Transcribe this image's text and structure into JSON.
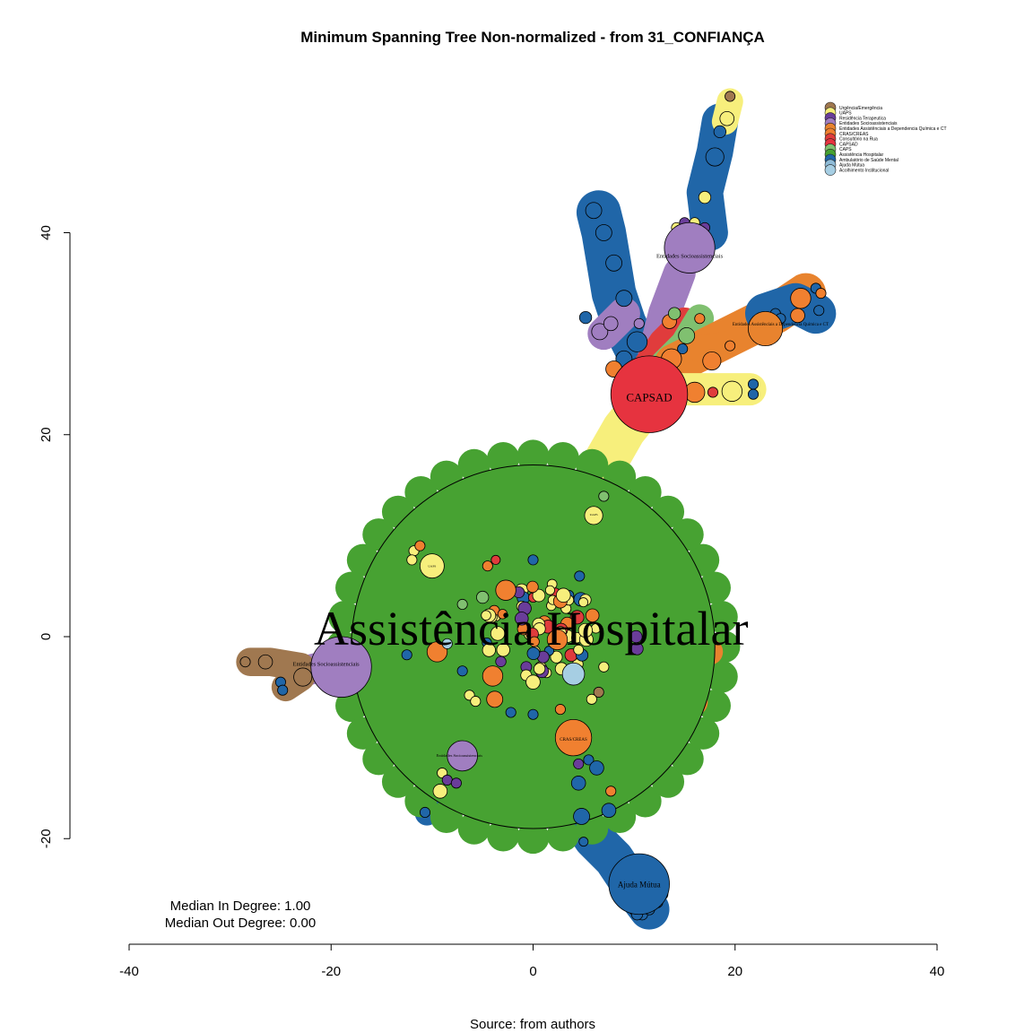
{
  "chart_data": {
    "type": "network",
    "title": "Minimum Spanning Tree Non-normalized - from 31_CONFIANÇA",
    "caption": "Source: from authors",
    "stats": [
      "Median In Degree: 1.00",
      "Median Out Degree: 0.00"
    ],
    "xlim": [
      -40,
      40
    ],
    "ylim": [
      -30,
      50
    ],
    "x_ticks": [
      -40,
      -20,
      0,
      20,
      40
    ],
    "y_ticks": [
      -20,
      0,
      20,
      40
    ],
    "grid": false,
    "legend_placement": "top-right",
    "legend": [
      {
        "label": "Urgência/Emergência",
        "color": "#a07850"
      },
      {
        "label": "UAPS",
        "color": "#f7ef7c"
      },
      {
        "label": "Residência Terapeutica",
        "color": "#6a3d9a"
      },
      {
        "label": "Entidades Socioassistenciais",
        "color": "#a07ec0"
      },
      {
        "label": "Entidades Assistênciais a Dependencia Química e CT",
        "color": "#e8832e"
      },
      {
        "label": "CRAS/CREAS",
        "color": "#f08030"
      },
      {
        "label": "Consultório na Rua",
        "color": "#e03c3c"
      },
      {
        "label": "CAPSAD",
        "color": "#e6333f"
      },
      {
        "label": "CAPS",
        "color": "#80c070"
      },
      {
        "label": "Assistência Hospitalar",
        "color": "#47a232"
      },
      {
        "label": "Ambulatório de Saúde Mental",
        "color": "#2066a8"
      },
      {
        "label": "Ajuda Mútua",
        "color": "#8fbcd8"
      },
      {
        "label": "Acolhimento Institucional",
        "color": "#a6cee3"
      }
    ],
    "labels": {
      "hospital": "Assistência Hospitalar",
      "capsad": "CAPSAD",
      "ajuda": "Ajuda Mútua",
      "entidades": "Entidades Socioassistenciais",
      "dependencia": "Entidades Assistênciais a Dependencia Química e CT",
      "uaps": "UAPS",
      "cras": "CRAS/CREAS"
    },
    "hubs": [
      {
        "name": "Assistência Hospitalar",
        "x": 0,
        "y": -1,
        "r": 18,
        "color": "#47a232"
      },
      {
        "name": "CAPSAD",
        "x": 11.5,
        "y": 24,
        "r": 3.8,
        "color": "#e6333f"
      },
      {
        "name": "Ajuda Mútua",
        "x": 10.5,
        "y": -24.5,
        "r": 3,
        "color": "#2066a8"
      },
      {
        "name": "Entidades Socioassistenciais",
        "x": 15.5,
        "y": 38.5,
        "r": 2.5,
        "color": "#a07ec0"
      },
      {
        "name": "Entidades Socioassistenciais",
        "x": -19,
        "y": -3,
        "r": 3,
        "color": "#a07ec0"
      },
      {
        "name": "Entidades Socioassistenciais",
        "x": -7,
        "y": -11.8,
        "r": 1.5,
        "color": "#a07ec0"
      },
      {
        "name": "Entidades Assistênciais a Dependencia Química e CT",
        "x": 23,
        "y": 30.5,
        "r": 1.7,
        "color": "#e8832e"
      },
      {
        "name": "CRAS/CREAS",
        "x": 4,
        "y": -10,
        "r": 1.8,
        "color": "#f08030"
      },
      {
        "name": "UAPS",
        "x": 6,
        "y": 12,
        "r": 0.9,
        "color": "#f7ef7c"
      },
      {
        "name": "UAPS",
        "x": -10,
        "y": 7,
        "r": 1.2,
        "color": "#f7ef7c"
      }
    ]
  }
}
